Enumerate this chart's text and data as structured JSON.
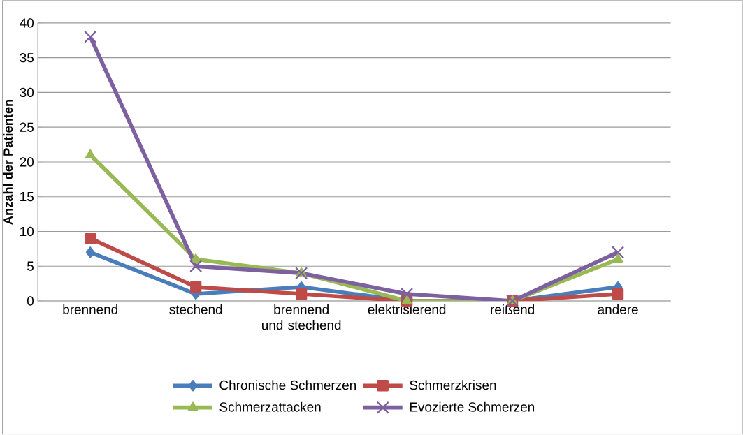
{
  "chart_data": {
    "type": "line",
    "ylabel": "Anzahl der Patienten",
    "categories": [
      "brennend",
      "stechend",
      "brennend und stechend",
      "elektrisierend",
      "reißend",
      "andere"
    ],
    "series": [
      {
        "name": "Chronische Schmerzen",
        "color": "#4a7ebb",
        "marker": "diamond",
        "values": [
          7,
          1,
          2,
          0,
          0,
          2
        ]
      },
      {
        "name": "Schmerzkrisen",
        "color": "#be4b48",
        "marker": "square",
        "values": [
          9,
          2,
          1,
          0,
          0,
          1
        ]
      },
      {
        "name": "Schmerzattacken",
        "color": "#98b954",
        "marker": "triangle",
        "values": [
          21,
          6,
          4,
          0,
          0,
          6
        ]
      },
      {
        "name": "Evozierte Schmerzen",
        "color": "#7d60a0",
        "marker": "cross",
        "values": [
          38,
          5,
          4,
          1,
          0,
          7
        ]
      }
    ],
    "ylim": [
      0,
      40
    ],
    "yticks": [
      0,
      5,
      10,
      15,
      20,
      25,
      30,
      35,
      40
    ],
    "grid": "y",
    "legend": "bottom",
    "line_style": "solid"
  }
}
